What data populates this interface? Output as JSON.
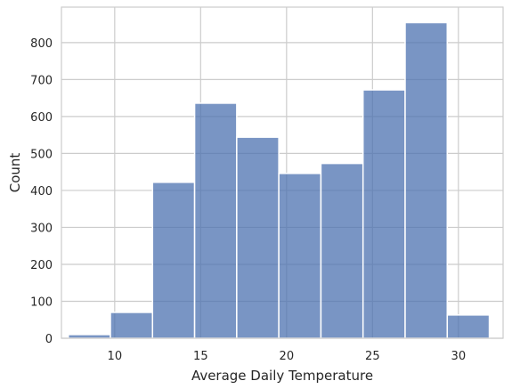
{
  "chart_data": {
    "type": "bar",
    "xlabel": "Average Daily Temperature",
    "ylabel": "Count",
    "xlim": [
      6.9,
      32.6
    ],
    "ylim": [
      0,
      896
    ],
    "grid": true,
    "bar_color": "#4c72b0",
    "x_ticks": [
      10,
      15,
      20,
      25,
      30
    ],
    "y_ticks": [
      0,
      100,
      200,
      300,
      400,
      500,
      600,
      700,
      800
    ],
    "bins": [
      {
        "start": 7.3,
        "end": 9.75,
        "count": 10
      },
      {
        "start": 9.75,
        "end": 12.2,
        "count": 70
      },
      {
        "start": 12.2,
        "end": 14.65,
        "count": 422
      },
      {
        "start": 14.65,
        "end": 17.1,
        "count": 636
      },
      {
        "start": 17.1,
        "end": 19.55,
        "count": 544
      },
      {
        "start": 19.55,
        "end": 22.0,
        "count": 446
      },
      {
        "start": 22.0,
        "end": 24.45,
        "count": 473
      },
      {
        "start": 24.45,
        "end": 26.9,
        "count": 672
      },
      {
        "start": 26.9,
        "end": 29.35,
        "count": 854
      },
      {
        "start": 29.35,
        "end": 31.8,
        "count": 63
      }
    ]
  }
}
